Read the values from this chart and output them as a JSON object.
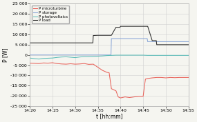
{
  "title": "",
  "xlabel": "t [hh:mm]",
  "ylabel": "P [W]",
  "ylim": [
    -25000,
    25000
  ],
  "yticks": [
    -25000,
    -20000,
    -15000,
    -10000,
    -5000,
    0,
    5000,
    10000,
    15000,
    20000,
    25000
  ],
  "ytick_labels": [
    "-25 000",
    "-20 000",
    "-15 000",
    "-10 000",
    "-5 000",
    "0",
    "5 000",
    "10 000",
    "15 000",
    "20 000",
    "25 000"
  ],
  "xtick_labels": [
    "14:20",
    "14:25",
    "14:30",
    "14:35",
    "14:40",
    "14:45",
    "14:50",
    "14:55"
  ],
  "bg_color": "#f5f5f0",
  "colors": {
    "microturbine": "#e8625a",
    "storage": "#8ca8d8",
    "photovoltaics": "#5abcb8",
    "load": "#2a2a2a"
  },
  "legend_labels": [
    "P microturbine",
    "P storage",
    "P photovoltaics",
    "P load"
  ],
  "series": {
    "microturbine": {
      "t": [
        0,
        1,
        2,
        3,
        4,
        5,
        6,
        7,
        8,
        9,
        10,
        11,
        12,
        13,
        14,
        15,
        16,
        17,
        17.5,
        18,
        19,
        19.5,
        20,
        21,
        22,
        23,
        24,
        25,
        25.5,
        26,
        27,
        28,
        29,
        30,
        31,
        32,
        33,
        34,
        35
      ],
      "v": [
        -4000,
        -4100,
        -4200,
        -3900,
        -4000,
        -3800,
        -4200,
        -4400,
        -4500,
        -4300,
        -4500,
        -4400,
        -4200,
        -4600,
        -4500,
        -6000,
        -7500,
        -8500,
        -8700,
        -16500,
        -17500,
        -20500,
        -21000,
        -20500,
        -20800,
        -20500,
        -20200,
        -20200,
        -11800,
        -11500,
        -11200,
        -11000,
        -11000,
        -11200,
        -11000,
        -11100,
        -11000,
        -11000,
        -11000
      ]
    },
    "storage": {
      "t": [
        0,
        1,
        2,
        3,
        4,
        5,
        6,
        7,
        8,
        9,
        10,
        11,
        12,
        13,
        14,
        15,
        16,
        17,
        17.9,
        18,
        19,
        20,
        21,
        22,
        23,
        24,
        25,
        25.9,
        26,
        27,
        28,
        29,
        30,
        31,
        32,
        33,
        34,
        35
      ],
      "v": [
        0,
        0,
        0,
        0,
        0,
        0,
        0,
        0,
        0,
        0,
        0,
        0,
        0,
        0,
        0,
        0,
        0,
        0,
        0,
        8000,
        8000,
        8000,
        8000,
        8000,
        8000,
        8000,
        8000,
        8000,
        6500,
        6500,
        6500,
        6500,
        6500,
        6500,
        6500,
        6500,
        6500,
        6500
      ]
    },
    "photovoltaics": {
      "t": [
        0,
        1,
        2,
        3,
        4,
        5,
        6,
        7,
        8,
        9,
        10,
        11,
        12,
        13,
        14,
        15,
        16,
        17,
        18,
        19,
        20,
        21,
        22,
        23,
        24,
        25,
        26,
        27,
        28,
        29,
        30,
        31,
        32,
        33,
        34,
        35
      ],
      "v": [
        -1500,
        -1800,
        -2000,
        -1700,
        -1600,
        -1500,
        -1200,
        -1000,
        -900,
        -1100,
        -1300,
        -1000,
        -800,
        -800,
        -700,
        -600,
        -500,
        -300,
        -200,
        -100,
        -100,
        -100,
        -100,
        -100,
        -100,
        -100,
        -200,
        -200,
        -200,
        -200,
        -200,
        -200,
        -200,
        -200,
        -200,
        -200
      ]
    },
    "load": {
      "t": [
        0,
        1,
        2,
        3,
        4,
        5,
        6,
        7,
        8,
        9,
        10,
        11,
        12,
        13,
        13.9,
        14,
        15,
        16,
        17,
        17.9,
        18,
        19,
        19.9,
        20,
        21,
        22,
        23,
        24,
        25,
        25.9,
        26,
        27,
        27.9,
        28,
        29,
        30,
        31,
        32,
        33,
        34,
        35
      ],
      "v": [
        5900,
        5900,
        5900,
        5900,
        5900,
        5900,
        5900,
        5900,
        5900,
        5900,
        5900,
        5900,
        5900,
        5900,
        5900,
        9500,
        9600,
        9600,
        9600,
        9600,
        9600,
        13500,
        13500,
        14000,
        14000,
        14000,
        14000,
        14000,
        14000,
        14000,
        14000,
        7000,
        7000,
        5000,
        5000,
        5000,
        5000,
        5000,
        5000,
        5000,
        5000
      ]
    }
  }
}
